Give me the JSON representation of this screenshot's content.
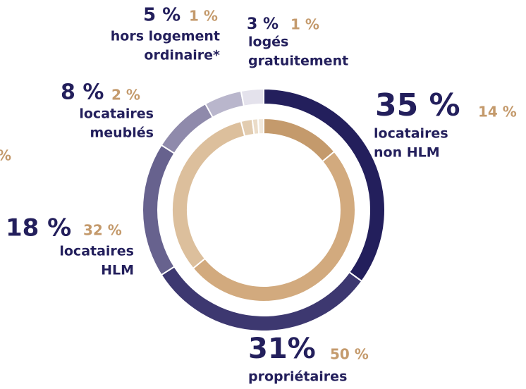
{
  "chart_data": {
    "type": "donut",
    "categories": [
      [
        "locataires",
        "non HLM"
      ],
      [
        "propriétaires"
      ],
      [
        "locataires",
        "HLM"
      ],
      [
        "locataires",
        "meublés"
      ],
      [
        "hors logement",
        "ordinaire*"
      ],
      [
        "logés",
        "gratuitement"
      ]
    ],
    "series": [
      {
        "colors": [
          "#231f5c",
          "#3d3870",
          "#67628e",
          "#8f8aab",
          "#b9b6cc",
          "#e4e2ec"
        ],
        "values": [
          35,
          31,
          18,
          8,
          5,
          3
        ],
        "value_labels": [
          "35 %",
          "31%",
          "18 %",
          "8 %",
          "5 %",
          "3 %"
        ]
      },
      {
        "colors": [
          "#c49a6c",
          "#d2aa7e",
          "#dcbf9c",
          "#e2ccb0",
          "#ebdcc8",
          "#f2e9dc"
        ],
        "values": [
          14,
          50,
          32,
          2,
          1,
          1
        ],
        "value_labels": [
          "14 %",
          "50 %",
          "32 %",
          "2 %",
          "1 %",
          "1 %"
        ]
      }
    ],
    "annotations": [
      "%"
    ]
  }
}
